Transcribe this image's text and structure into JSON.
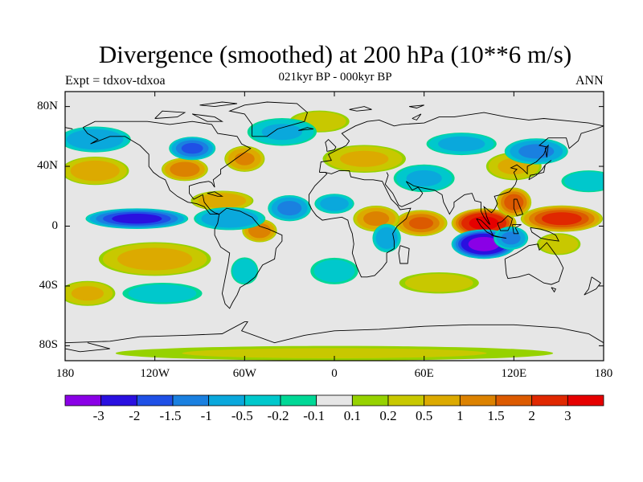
{
  "header": {
    "title": "Divergence (smoothed) at 200 hPa (10**6 m/s)",
    "experiment": "Expt = tdxov-tdxoa",
    "subtitle": "021kyr BP - 000kyr BP",
    "season": "ANN"
  },
  "map": {
    "projection": "cylindrical-equidistant",
    "lon_range": [
      -180,
      180
    ],
    "lat_range": [
      -90,
      90
    ],
    "y_ticks": [
      {
        "lat": 80,
        "label": "80N"
      },
      {
        "lat": 40,
        "label": "40N"
      },
      {
        "lat": 0,
        "label": "0"
      },
      {
        "lat": -40,
        "label": "40S"
      },
      {
        "lat": -80,
        "label": "80S"
      }
    ],
    "x_ticks": [
      {
        "lon": -180,
        "label": "180"
      },
      {
        "lon": -120,
        "label": "120W"
      },
      {
        "lon": -60,
        "label": "60W"
      },
      {
        "lon": 0,
        "label": "0"
      },
      {
        "lon": 60,
        "label": "60E"
      },
      {
        "lon": 120,
        "label": "120E"
      },
      {
        "lon": 180,
        "label": "180"
      }
    ],
    "background_color": "#e6e6e6"
  },
  "colorbar": {
    "colors": [
      "#8a00e6",
      "#2a10e0",
      "#1f50e6",
      "#1a80e0",
      "#0aa8dc",
      "#00c8cc",
      "#00d896",
      "#e6e6e6",
      "#96d200",
      "#c8c800",
      "#dcaa00",
      "#dc8200",
      "#dc5a00",
      "#e02800",
      "#e60000"
    ],
    "labels": [
      "-3",
      "-2",
      "-1.5",
      "-1",
      "-0.5",
      "-0.2",
      "-0.1",
      "0.1",
      "0.2",
      "0.5",
      "1",
      "1.5",
      "2",
      "3"
    ]
  },
  "field": {
    "units": "10**6 m/s",
    "blobs": [
      {
        "lon": 100,
        "lat": 2,
        "rx": 22,
        "ry": 10,
        "value": 3.2
      },
      {
        "lon": 152,
        "lat": 5,
        "rx": 28,
        "ry": 9,
        "value": 2.2
      },
      {
        "lon": 120,
        "lat": 16,
        "rx": 12,
        "ry": 10,
        "value": 1.8
      },
      {
        "lon": 58,
        "lat": 2,
        "rx": 18,
        "ry": 9,
        "value": 1.6
      },
      {
        "lon": 28,
        "lat": 5,
        "rx": 16,
        "ry": 9,
        "value": 1.2
      },
      {
        "lon": -100,
        "lat": 38,
        "rx": 16,
        "ry": 8,
        "value": 1.4
      },
      {
        "lon": -60,
        "lat": 45,
        "rx": 14,
        "ry": 9,
        "value": 1.1
      },
      {
        "lon": -50,
        "lat": -3,
        "rx": 12,
        "ry": 8,
        "value": 1.4
      },
      {
        "lon": -75,
        "lat": 17,
        "rx": 22,
        "ry": 7,
        "value": 0.9
      },
      {
        "lon": 20,
        "lat": 45,
        "rx": 30,
        "ry": 10,
        "value": 0.6
      },
      {
        "lon": -160,
        "lat": 37,
        "rx": 24,
        "ry": 10,
        "value": 0.8
      },
      {
        "lon": -120,
        "lat": -22,
        "rx": 40,
        "ry": 12,
        "value": 0.7
      },
      {
        "lon": -165,
        "lat": -45,
        "rx": 20,
        "ry": 9,
        "value": 0.6
      },
      {
        "lon": 120,
        "lat": 40,
        "rx": 20,
        "ry": 10,
        "value": 0.6
      },
      {
        "lon": 150,
        "lat": -12,
        "rx": 16,
        "ry": 8,
        "value": 0.5
      },
      {
        "lon": 70,
        "lat": -38,
        "rx": 30,
        "ry": 8,
        "value": 0.4
      },
      {
        "lon": -10,
        "lat": 70,
        "rx": 22,
        "ry": 8,
        "value": 0.5
      },
      {
        "lon": 100,
        "lat": -12,
        "rx": 22,
        "ry": 10,
        "value": -3.3
      },
      {
        "lon": 118,
        "lat": -8,
        "rx": 12,
        "ry": 8,
        "value": -1.2
      },
      {
        "lon": -132,
        "lat": 5,
        "rx": 35,
        "ry": 7,
        "value": -2.2
      },
      {
        "lon": -70,
        "lat": 5,
        "rx": 25,
        "ry": 8,
        "value": -1.0
      },
      {
        "lon": -30,
        "lat": 12,
        "rx": 15,
        "ry": 9,
        "value": -1.2
      },
      {
        "lon": 0,
        "lat": 15,
        "rx": 14,
        "ry": 7,
        "value": -0.8
      },
      {
        "lon": 35,
        "lat": -8,
        "rx": 10,
        "ry": 10,
        "value": -0.9
      },
      {
        "lon": -95,
        "lat": 52,
        "rx": 16,
        "ry": 8,
        "value": -1.6
      },
      {
        "lon": -160,
        "lat": 58,
        "rx": 25,
        "ry": 9,
        "value": -1.0
      },
      {
        "lon": 60,
        "lat": 32,
        "rx": 22,
        "ry": 10,
        "value": -0.6
      },
      {
        "lon": 135,
        "lat": 50,
        "rx": 22,
        "ry": 9,
        "value": -1.2
      },
      {
        "lon": 85,
        "lat": 55,
        "rx": 25,
        "ry": 8,
        "value": -0.7
      },
      {
        "lon": -35,
        "lat": 63,
        "rx": 25,
        "ry": 10,
        "value": -0.6
      },
      {
        "lon": -60,
        "lat": -30,
        "rx": 10,
        "ry": 10,
        "value": -0.5
      },
      {
        "lon": -115,
        "lat": -45,
        "rx": 30,
        "ry": 8,
        "value": -0.4
      },
      {
        "lon": 0,
        "lat": -30,
        "rx": 18,
        "ry": 10,
        "value": -0.4
      },
      {
        "lon": 170,
        "lat": 30,
        "rx": 20,
        "ry": 8,
        "value": -0.5
      },
      {
        "lon": 0,
        "lat": -85,
        "rx": 180,
        "ry": 6,
        "value": 0.25
      }
    ]
  }
}
